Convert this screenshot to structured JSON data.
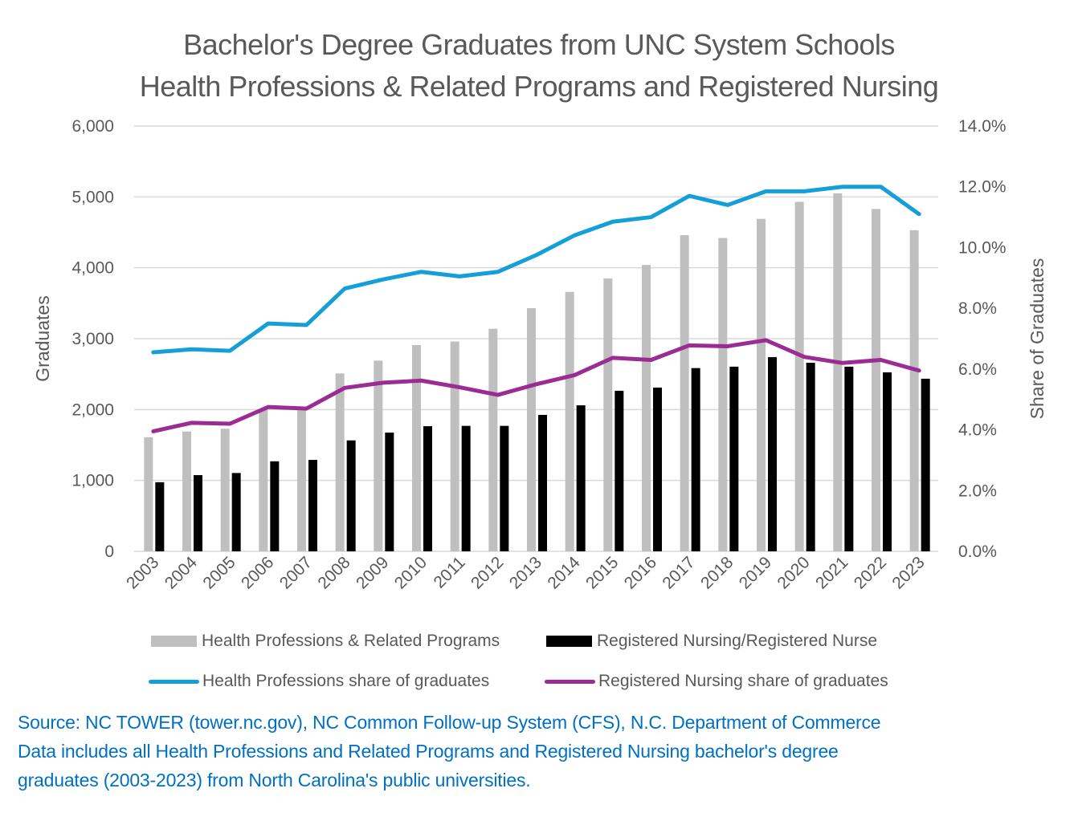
{
  "title": {
    "line1": "Bachelor's Degree Graduates from UNC System Schools",
    "line2": "Health Professions & Related Programs and Registered Nursing"
  },
  "axes": {
    "left_title": "Graduates",
    "right_title": "Share of Graduates",
    "left_ticks": [
      "0",
      "1,000",
      "2,000",
      "3,000",
      "4,000",
      "5,000",
      "6,000"
    ],
    "right_ticks": [
      "0.0%",
      "2.0%",
      "4.0%",
      "6.0%",
      "8.0%",
      "10.0%",
      "12.0%",
      "14.0%"
    ]
  },
  "legend": {
    "hp_bar": "Health Professions & Related Programs",
    "rn_bar": "Registered Nursing/Registered Nurse",
    "hp_line": "Health Professions share of graduates",
    "rn_line": "Registered Nursing share of graduates"
  },
  "colors": {
    "hp_bar": "#bfbfbf",
    "rn_bar": "#000000",
    "hp_line": "#149fd8",
    "rn_line": "#9b2c94",
    "gridline": "#d9d9d9",
    "text": "#595959",
    "source": "#0070c0"
  },
  "source": {
    "line1": "Source: NC TOWER (tower.nc.gov), NC Common Follow-up System (CFS), N.C. Department of Commerce",
    "line2": "Data includes all Health Professions and Related Programs and Registered Nursing bachelor's degree",
    "line3": "graduates (2003-2023) from North Carolina's public universities."
  },
  "chart_data": {
    "type": "bar",
    "title": "Bachelor's Degree Graduates from UNC System Schools — Health Professions & Related Programs and Registered Nursing",
    "xlabel": "",
    "ylabel": "Graduates",
    "y2label": "Share of Graduates",
    "ylim": [
      0,
      6000
    ],
    "y2lim": [
      0,
      14
    ],
    "grid": true,
    "legend_position": "bottom",
    "categories": [
      "2003",
      "2004",
      "2005",
      "2006",
      "2007",
      "2008",
      "2009",
      "2010",
      "2011",
      "2012",
      "2013",
      "2014",
      "2015",
      "2016",
      "2017",
      "2018",
      "2019",
      "2020",
      "2021",
      "2022",
      "2023"
    ],
    "series": [
      {
        "name": "Health Professions & Related Programs",
        "type": "bar",
        "axis": "left",
        "values": [
          1610,
          1690,
          1730,
          2010,
          1990,
          2510,
          2690,
          2910,
          2960,
          3140,
          3430,
          3660,
          3850,
          4040,
          4460,
          4420,
          4690,
          4930,
          5050,
          4830,
          4530
        ]
      },
      {
        "name": "Registered Nursing/Registered Nurse",
        "type": "bar",
        "axis": "left",
        "values": [
          975,
          1075,
          1105,
          1270,
          1290,
          1565,
          1675,
          1765,
          1770,
          1770,
          1925,
          2060,
          2265,
          2310,
          2585,
          2605,
          2740,
          2660,
          2605,
          2525,
          2435
        ]
      },
      {
        "name": "Health Professions share of graduates",
        "type": "line",
        "axis": "right",
        "unit": "%",
        "values": [
          6.55,
          6.65,
          6.6,
          7.5,
          7.45,
          8.65,
          8.95,
          9.2,
          9.05,
          9.2,
          9.75,
          10.4,
          10.85,
          11.0,
          11.7,
          11.4,
          11.85,
          11.85,
          12.0,
          12.0,
          11.1
        ]
      },
      {
        "name": "Registered Nursing share of graduates",
        "type": "line",
        "axis": "right",
        "unit": "%",
        "values": [
          3.95,
          4.23,
          4.2,
          4.75,
          4.7,
          5.38,
          5.55,
          5.62,
          5.4,
          5.15,
          5.5,
          5.8,
          6.37,
          6.3,
          6.78,
          6.75,
          6.95,
          6.4,
          6.2,
          6.3,
          5.95
        ]
      }
    ]
  }
}
